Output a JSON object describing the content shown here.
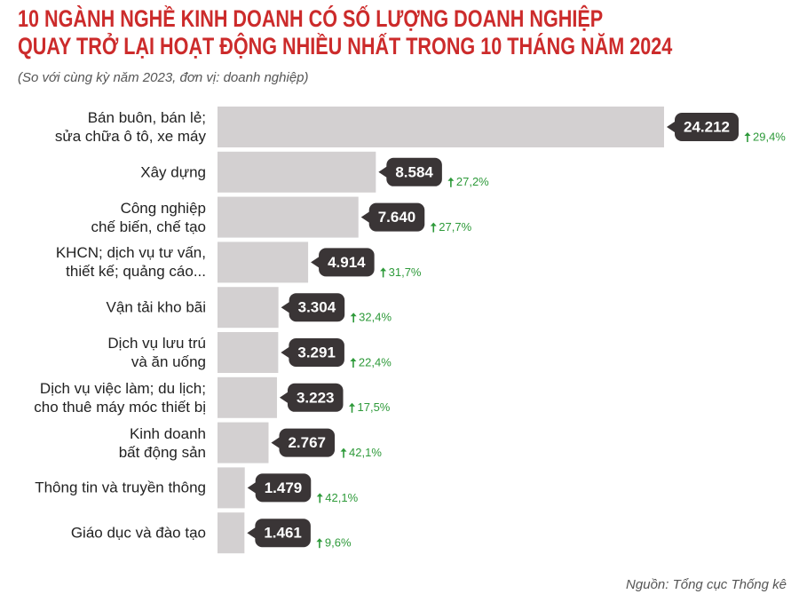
{
  "chart_data": {
    "type": "bar",
    "title": "10 NGÀNH NGHỀ KINH DOANH CÓ SỐ LƯỢNG DOANH NGHIỆP\nQUAY TRỞ LẠI HOẠT ĐỘNG NHIỀU NHẤT TRONG 10 THÁNG NĂM 2024",
    "subtitle": "(So với cùng kỳ năm 2023, đơn vị: doanh nghiệp)",
    "source": "Nguồn: Tổng cục Thống kê",
    "orientation": "horizontal",
    "categories": [
      "Bán buôn, bán lẻ;\nsửa chữa ô tô, xe máy",
      "Xây dựng",
      "Công nghiệp\nchế biến, chế tạo",
      "KHCN; dịch vụ tư vấn,\nthiết kế; quảng cáo...",
      "Vận tải kho bãi",
      "Dịch vụ lưu trú\nvà ăn uống",
      "Dịch vụ việc làm; du lịch;\ncho thuê máy móc thiết bị",
      "Kinh doanh\nbất động sản",
      "Thông tin và truyền thông",
      "Giáo dục và đào tạo"
    ],
    "values": [
      24212,
      8584,
      7640,
      4914,
      3304,
      3291,
      3223,
      2767,
      1479,
      1461
    ],
    "value_labels": [
      "24.212",
      "8.584",
      "7.640",
      "4.914",
      "3.304",
      "3.291",
      "3.223",
      "2.767",
      "1.479",
      "1.461"
    ],
    "color": "#d3d0d1",
    "label_color": "#3a3536",
    "growth": {
      "color": "#2e9a3a",
      "values": [
        29.4,
        27.2,
        27.7,
        31.7,
        32.4,
        22.4,
        17.5,
        42.1,
        42.1,
        9.6
      ],
      "value_labels": [
        "29,4%",
        "27,2%",
        "27,7%",
        "31,7%",
        "32,4%",
        "22,4%",
        "17,5%",
        "42,1%",
        "42,1%",
        "9,6%"
      ]
    }
  }
}
